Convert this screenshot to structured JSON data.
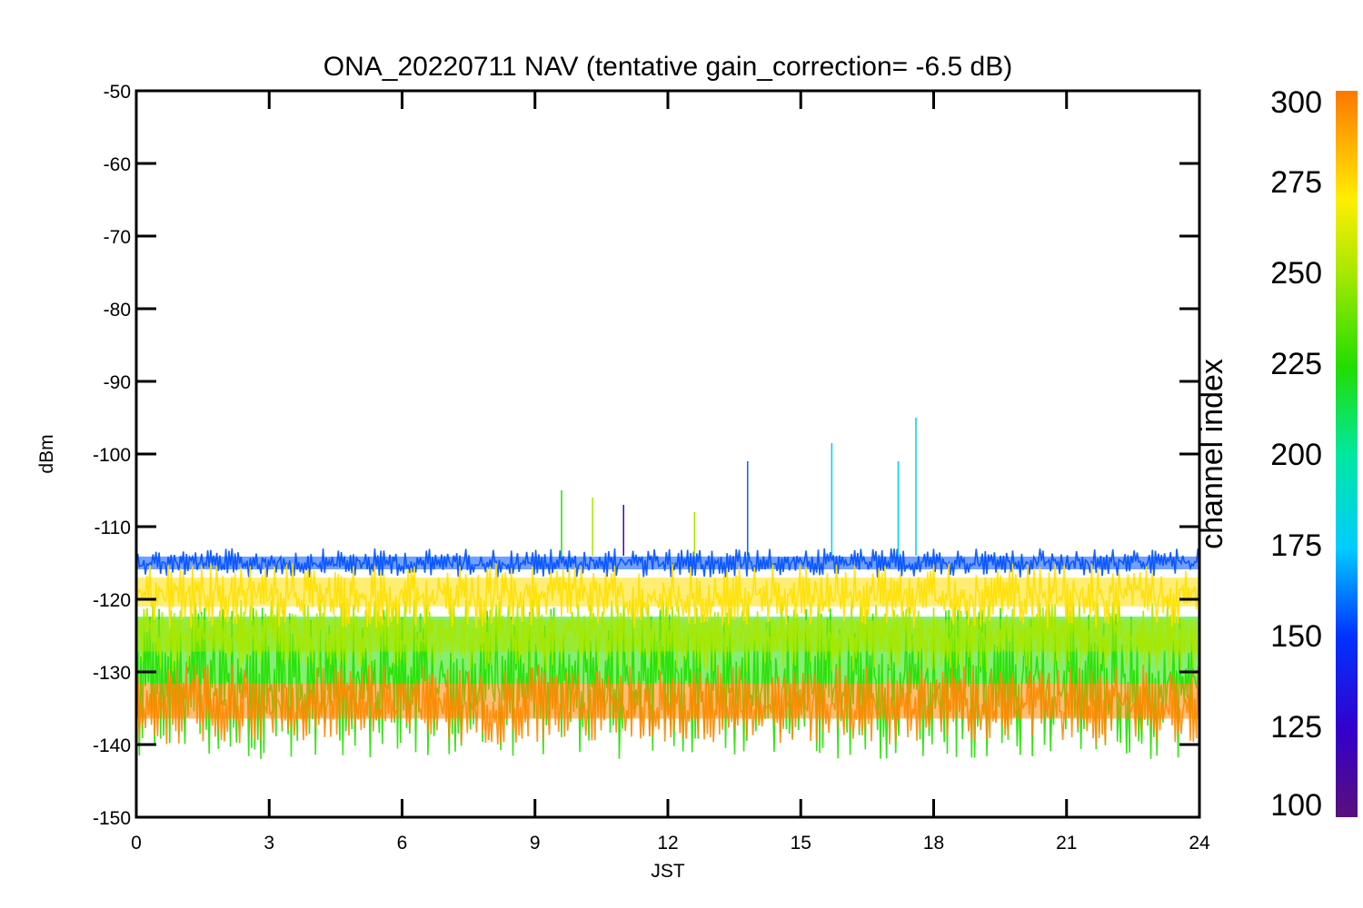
{
  "chart_data": {
    "type": "line",
    "title": "ONA_20220711 NAV (tentative gain_correction= -6.5 dB)",
    "xlabel": "JST",
    "ylabel": "dBm",
    "xlim": [
      0,
      24
    ],
    "ylim": [
      -150,
      -50
    ],
    "xticks": [
      0,
      3,
      6,
      9,
      12,
      15,
      18,
      21,
      24
    ],
    "yticks": [
      -50,
      -60,
      -70,
      -80,
      -90,
      -100,
      -110,
      -120,
      -130,
      -140,
      -150
    ],
    "grid": false,
    "colorbar": {
      "label": "channel index",
      "range": [
        100,
        300
      ],
      "ticks": [
        300,
        275,
        250,
        225,
        200,
        175,
        150,
        125,
        100
      ],
      "colormap": "rainbow"
    },
    "series": [
      {
        "channel_range": [
          270,
          300
        ],
        "color": "#ff8800",
        "band_dBm": [
          -140,
          -129
        ],
        "mean_dBm": -134
      },
      {
        "channel_range": [
          255,
          270
        ],
        "color": "#ffe000",
        "band_dBm": [
          -124,
          -115
        ],
        "mean_dBm": -119
      },
      {
        "channel_range": [
          240,
          255
        ],
        "color": "#a8e800",
        "band_dBm": [
          -130,
          -120
        ],
        "mean_dBm": -125
      },
      {
        "channel_range": [
          215,
          240
        ],
        "color": "#22e000",
        "band_dBm": [
          -142,
          -121
        ],
        "mean_dBm": -127
      },
      {
        "channel_range": [
          140,
          165
        ],
        "color": "#0050ff",
        "band_dBm": [
          -117,
          -113
        ],
        "mean_dBm": -115
      }
    ],
    "spikes": [
      {
        "x": 9.6,
        "y": -105,
        "channel": 230
      },
      {
        "x": 10.3,
        "y": -106,
        "channel": 240
      },
      {
        "x": 11.0,
        "y": -107,
        "channel": 110
      },
      {
        "x": 12.6,
        "y": -108,
        "channel": 240
      },
      {
        "x": 13.8,
        "y": -101,
        "channel": 175
      },
      {
        "x": 15.7,
        "y": -98.5,
        "channel": 180
      },
      {
        "x": 17.2,
        "y": -101,
        "channel": 190
      },
      {
        "x": 17.6,
        "y": -95,
        "channel": 195
      }
    ]
  }
}
